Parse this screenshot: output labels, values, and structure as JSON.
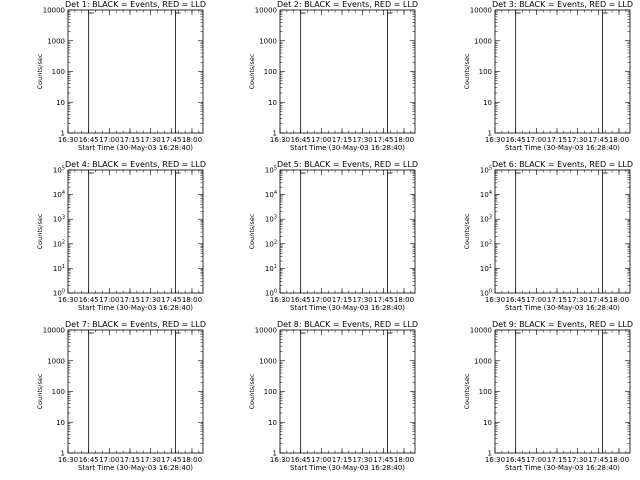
{
  "chart_data": {
    "type": "line",
    "xlabel": "Start Time (30-May-03 16:28:40)",
    "ylabel": "Counts/sec",
    "x_ticks": [
      "16:30",
      "16:45",
      "17:00",
      "17:15",
      "17:30",
      "17:45",
      "18:00"
    ],
    "xlim": [
      "16:30",
      "18:08"
    ],
    "log_y": true,
    "vertical_markers": [
      "16:45",
      "17:48"
    ],
    "series_colors": {
      "events": "#000000",
      "lld": "#dd0000"
    },
    "panels": [
      {
        "title": "Det 1: BLACK = Events, RED = LLD",
        "ylim": [
          1,
          10000
        ],
        "y_ticks": [
          "1",
          "10",
          "100",
          "1000",
          "10000"
        ],
        "y_power_labels": false,
        "shape": "a"
      },
      {
        "title": "Det 2: BLACK = Events, RED = LLD",
        "ylim": [
          1,
          10000
        ],
        "y_ticks": [
          "1",
          "10",
          "100",
          "1000",
          "10000"
        ],
        "y_power_labels": false,
        "shape": "b"
      },
      {
        "title": "Det 3: BLACK = Events, RED = LLD",
        "ylim": [
          1,
          10000
        ],
        "y_ticks": [
          "1",
          "10",
          "100",
          "1000",
          "10000"
        ],
        "y_power_labels": false,
        "shape": "a"
      },
      {
        "title": "Det 4: BLACK = Events, RED = LLD",
        "ylim": [
          1,
          100000
        ],
        "y_ticks": [
          "0",
          "1",
          "2",
          "3",
          "4",
          "5"
        ],
        "y_power_labels": true,
        "shape": "a"
      },
      {
        "title": "Det 5: BLACK = Events, RED = LLD",
        "ylim": [
          1,
          100000
        ],
        "y_ticks": [
          "0",
          "1",
          "2",
          "3",
          "4",
          "5"
        ],
        "y_power_labels": true,
        "shape": "c"
      },
      {
        "title": "Det 6: BLACK = Events, RED = LLD",
        "ylim": [
          1,
          100000
        ],
        "y_ticks": [
          "0",
          "1",
          "2",
          "3",
          "4",
          "5"
        ],
        "y_power_labels": true,
        "shape": "a"
      },
      {
        "title": "Det 7: BLACK = Events, RED = LLD",
        "ylim": [
          1,
          10000
        ],
        "y_ticks": [
          "1",
          "10",
          "100",
          "1000",
          "10000"
        ],
        "y_power_labels": false,
        "shape": "a"
      },
      {
        "title": "Det 8: BLACK = Events, RED = LLD",
        "ylim": [
          1,
          10000
        ],
        "y_ticks": [
          "1",
          "10",
          "100",
          "1000",
          "10000"
        ],
        "y_power_labels": false,
        "shape": "d"
      },
      {
        "title": "Det 9: BLACK = Events, RED = LLD",
        "ylim": [
          1,
          10000
        ],
        "y_ticks": [
          "1",
          "10",
          "100",
          "1000",
          "10000"
        ],
        "y_power_labels": false,
        "shape": "a"
      }
    ]
  }
}
